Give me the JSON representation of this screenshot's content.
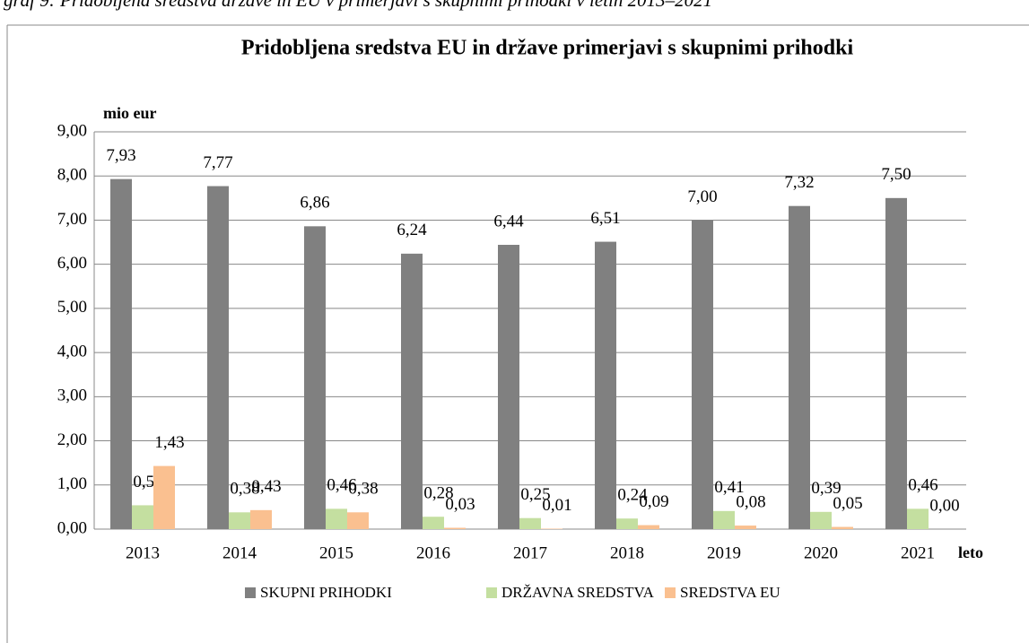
{
  "caption": "graf 9: Pridobljena sredstva države in EU v primerjavi s skupnimi prihodki v letih 2013–2021",
  "chart_data": {
    "type": "bar",
    "title": "Pridobljena sredstva EU in države  primerjavi s skupnimi prihodki",
    "y_label": "mio eur",
    "x_label": "leto",
    "categories": [
      "2013",
      "2014",
      "2015",
      "2016",
      "2017",
      "2018",
      "2019",
      "2020",
      "2021"
    ],
    "series": [
      {
        "name": "SKUPNI PRIHODKI",
        "color": "#808080",
        "values": [
          7.93,
          7.77,
          6.86,
          6.24,
          6.44,
          6.51,
          7.0,
          7.32,
          7.5
        ],
        "value_labels": [
          "7,93",
          "7,77",
          "6,86",
          "6,24",
          "6,44",
          "6,51",
          "7,00",
          "7,32",
          "7,50"
        ]
      },
      {
        "name": "DRŽAVNA SREDSTVA",
        "color": "#c4dfa0",
        "values": [
          0.54,
          0.38,
          0.46,
          0.28,
          0.25,
          0.24,
          0.41,
          0.39,
          0.46
        ],
        "value_labels": [
          "0,54",
          "0,38",
          "0,46",
          "0,28",
          "0,25",
          "0,24",
          "0,41",
          "0,39",
          "0,46"
        ]
      },
      {
        "name": "SREDSTVA EU",
        "color": "#fac090",
        "values": [
          1.43,
          0.43,
          0.38,
          0.03,
          0.01,
          0.09,
          0.08,
          0.05,
          0.0
        ],
        "value_labels": [
          "1,43",
          "0,43",
          "0,38",
          "0,03",
          "0,01",
          "0,09",
          "0,08",
          "0,05",
          "0,00"
        ]
      }
    ],
    "ylim": [
      0,
      9
    ],
    "yticks": [
      {
        "value": 0,
        "label": "0,00"
      },
      {
        "value": 1,
        "label": "1,00"
      },
      {
        "value": 2,
        "label": "2,00"
      },
      {
        "value": 3,
        "label": "3,00"
      },
      {
        "value": 4,
        "label": "4,00"
      },
      {
        "value": 5,
        "label": "5,00"
      },
      {
        "value": 6,
        "label": "6,00"
      },
      {
        "value": 7,
        "label": "7,00"
      },
      {
        "value": 8,
        "label": "8,00"
      },
      {
        "value": 9,
        "label": "9,00"
      }
    ],
    "grid": true,
    "legend": "bottom"
  }
}
